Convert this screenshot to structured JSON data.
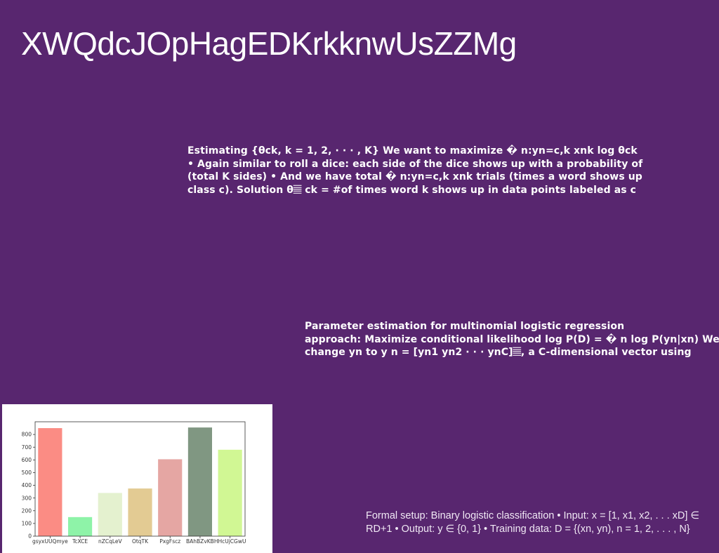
{
  "slide": {
    "title": "XWQdcJOpHagEDKrkknwUsZZMg"
  },
  "text_blocks": {
    "block1": {
      "lines": [
        "Estimating {θck, k = 1, 2, · · · , K} We want to maximize � n:yn=c,k xnk log θck",
        "• Again similar to roll a dice: each side of the dice shows up with a probability of",
        "(total K sides) • And we have total � n:yn=c,k xnk trials (times a word shows up",
        "class c). Solution θ𝄚 ck = #of times word k shows up in data points labeled as c"
      ]
    },
    "block2": {
      "lines": [
        "Parameter estimation for multinomial logistic regression",
        "approach: Maximize conditional likelihood log P(D) = � n log P(yn|xn) We",
        "change yn to y n = [yn1 yn2 · · · ynC]𝄚, a C-dimensional vector using"
      ]
    },
    "block3": {
      "lines": [
        "Formal setup: Binary logistic classification • Input: x = [1, x1, x2, . . . xD] ∈",
        "RD+1 • Output: y ∈ {0, 1} • Training data: D = {(xn, yn), n = 1, 2, . . . , N}"
      ]
    }
  },
  "chart_data": {
    "type": "bar",
    "categories": [
      "gsyxUUQmye",
      "TcXCE",
      "nZCqLeV",
      "OtqTK",
      "PxgFscz",
      "BAhBZvKB",
      "HHcUjCGwU"
    ],
    "values": [
      850,
      150,
      340,
      375,
      605,
      855,
      680
    ],
    "colors": [
      "#fb8c84",
      "#8ef3a8",
      "#e4f1cf",
      "#e3cb93",
      "#e5a6a3",
      "#809782",
      "#d1f794"
    ],
    "ylim": [
      0,
      900
    ],
    "yticks": [
      0,
      100,
      200,
      300,
      400,
      500,
      600,
      700,
      800
    ],
    "title": "",
    "xlabel": "",
    "ylabel": ""
  }
}
